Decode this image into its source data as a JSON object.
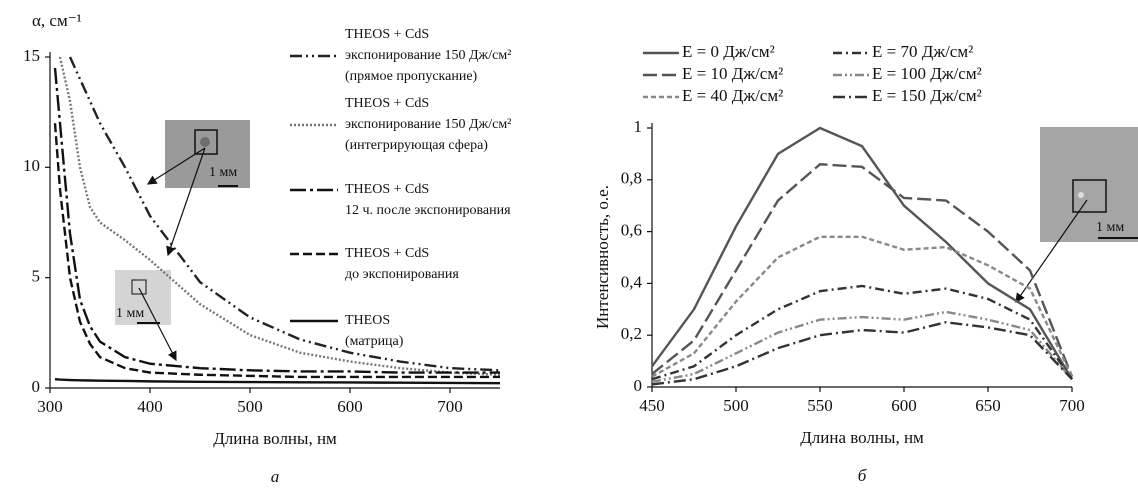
{
  "chart_data": [
    {
      "type": "line",
      "subtitle": "а",
      "x_label": "Длина волны, нм",
      "y_label": "α, см⁻¹",
      "xlim": [
        300,
        750
      ],
      "ylim": [
        0,
        15
      ],
      "xticks": [
        300,
        400,
        500,
        600,
        700
      ],
      "yticks": [
        0,
        5,
        10,
        15
      ],
      "x": [
        305,
        310,
        320,
        330,
        340,
        350,
        375,
        400,
        450,
        500,
        550,
        600,
        650,
        700,
        750
      ],
      "annotations": [
        "1 мм",
        "1 мм"
      ],
      "series": [
        {
          "name": "THEOS + CdS\nэкспонирование 150 Дж/см²\n(прямое пропускание)",
          "color": "#222222",
          "dash": "12 4 2 4 2 4",
          "values": [
            null,
            null,
            15,
            14,
            13,
            12,
            10,
            7.8,
            4.8,
            3.2,
            2.2,
            1.6,
            1.2,
            0.9,
            0.8
          ]
        },
        {
          "name": "THEOS + CdS\nэкспонирование 150 Дж/см²\n(интегрирующая сфера)",
          "color": "#777777",
          "dash": "2 2",
          "values": [
            null,
            15,
            13,
            10,
            8.2,
            7.5,
            6.7,
            5.8,
            3.8,
            2.4,
            1.6,
            1.2,
            0.9,
            0.7,
            0.6
          ]
        },
        {
          "name": "THEOS + CdS\n12 ч. после экспонирования",
          "color": "#111111",
          "dash": "16 4 3 4",
          "values": [
            14.5,
            12,
            7,
            4,
            2.8,
            2.1,
            1.4,
            1.1,
            0.9,
            0.8,
            0.75,
            0.75,
            0.7,
            0.7,
            0.7
          ]
        },
        {
          "name": "THEOS + CdS\nдо экспонирования",
          "color": "#111111",
          "dash": "9 4",
          "values": [
            12,
            9,
            5,
            3,
            2,
            1.4,
            0.9,
            0.7,
            0.6,
            0.55,
            0.5,
            0.5,
            0.5,
            0.5,
            0.5
          ]
        },
        {
          "name": "THEOS\n(матрица)",
          "color": "#111111",
          "dash": "",
          "values": [
            0.4,
            0.38,
            0.36,
            0.35,
            0.34,
            0.33,
            0.32,
            0.3,
            0.28,
            0.27,
            0.26,
            0.25,
            0.24,
            0.23,
            0.22
          ]
        }
      ]
    },
    {
      "type": "line",
      "subtitle": "б",
      "x_label": "Длина волны, нм",
      "y_label": "Интенсивность, о.е.",
      "xlim": [
        450,
        700
      ],
      "ylim": [
        0,
        1
      ],
      "xticks": [
        450,
        500,
        550,
        600,
        650,
        700
      ],
      "yticks": [
        0,
        {
          "value": 0.2,
          "label": "0,2"
        },
        {
          "value": 0.4,
          "label": "0,4"
        },
        {
          "value": 0.6,
          "label": "0,6"
        },
        {
          "value": 0.8,
          "label": "0,8"
        },
        1
      ],
      "x": [
        450,
        475,
        500,
        525,
        550,
        575,
        600,
        625,
        650,
        675,
        700
      ],
      "annotations": [
        "1 мм"
      ],
      "series": [
        {
          "name": "E = 0 Дж/см²",
          "color": "#555555",
          "dash": "",
          "values": [
            0.08,
            0.3,
            0.62,
            0.9,
            1.0,
            0.93,
            0.7,
            0.56,
            0.4,
            0.3,
            0.03
          ]
        },
        {
          "name": "E = 10 Дж/см²",
          "color": "#555555",
          "dash": "14 5",
          "values": [
            0.05,
            0.18,
            0.45,
            0.72,
            0.86,
            0.85,
            0.73,
            0.72,
            0.6,
            0.45,
            0.04
          ]
        },
        {
          "name": "E = 40 Дж/см²",
          "color": "#888888",
          "dash": "5 3",
          "values": [
            0.04,
            0.13,
            0.33,
            0.5,
            0.58,
            0.58,
            0.53,
            0.54,
            0.47,
            0.38,
            0.04
          ]
        },
        {
          "name": "E = 70 Дж/см²",
          "color": "#333333",
          "dash": "9 4 2 4",
          "values": [
            0.03,
            0.08,
            0.2,
            0.3,
            0.37,
            0.39,
            0.36,
            0.38,
            0.34,
            0.26,
            0.03
          ]
        },
        {
          "name": "E = 100 Дж/см²",
          "color": "#888888",
          "dash": "9 3 2 3 2 3",
          "values": [
            0.02,
            0.05,
            0.13,
            0.21,
            0.26,
            0.27,
            0.26,
            0.29,
            0.26,
            0.22,
            0.03
          ]
        },
        {
          "name": "E = 150 Дж/см²",
          "color": "#333333",
          "dash": "12 4 2 4",
          "values": [
            0.01,
            0.03,
            0.08,
            0.15,
            0.2,
            0.22,
            0.21,
            0.25,
            0.23,
            0.2,
            0.03
          ]
        }
      ]
    }
  ]
}
